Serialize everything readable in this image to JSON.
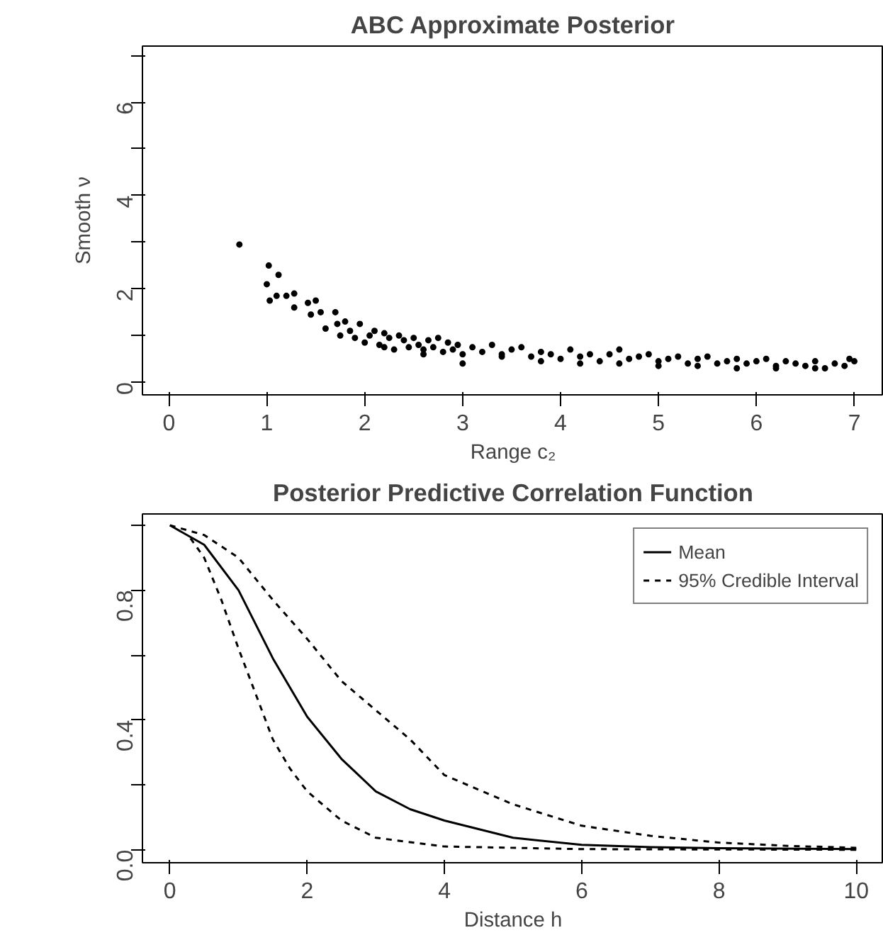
{
  "chart_data": [
    {
      "type": "scatter",
      "title": "ABC Approximate Posterior",
      "xlabel": "Range c₂",
      "ylabel": "Smooth ν",
      "xlim": [
        -0.27,
        7.3
      ],
      "ylim": [
        -0.27,
        7.2
      ],
      "xticks": [
        0,
        1,
        2,
        3,
        4,
        5,
        6,
        7
      ],
      "yticks": [
        0,
        {
          "value": 1,
          "label": null
        },
        2,
        {
          "value": 3,
          "label": null
        },
        4,
        {
          "value": 5,
          "label": null
        },
        6,
        {
          "value": 7,
          "label": null
        }
      ],
      "grid": false,
      "legend": false,
      "marker": "circle",
      "series": [
        {
          "color": "#000000",
          "x": [
            0.72,
            1.0,
            1.02,
            1.03,
            1.1,
            1.12,
            1.2,
            1.28,
            1.28,
            1.42,
            1.45,
            1.5,
            1.55,
            1.6,
            1.7,
            1.72,
            1.75,
            1.8,
            1.85,
            1.9,
            1.95,
            2.0,
            2.05,
            2.1,
            2.15,
            2.2,
            2.25,
            2.3,
            2.35,
            2.4,
            2.45,
            2.5,
            2.55,
            2.6,
            2.65,
            2.7,
            2.75,
            2.8,
            2.85,
            2.9,
            2.95,
            3.0,
            3.1,
            3.2,
            3.3,
            3.4,
            3.5,
            3.6,
            3.7,
            3.8,
            3.9,
            4.0,
            4.1,
            4.2,
            4.3,
            4.4,
            4.5,
            4.6,
            4.7,
            4.8,
            4.9,
            5.0,
            5.1,
            5.2,
            5.3,
            5.4,
            5.5,
            5.6,
            5.7,
            5.8,
            5.9,
            6.0,
            6.1,
            6.2,
            6.3,
            6.4,
            6.5,
            6.6,
            6.7,
            6.8,
            6.9,
            6.95,
            7.0,
            2.2,
            2.6,
            3.0,
            3.4,
            3.8,
            4.2,
            4.6,
            5.0,
            5.4,
            5.8,
            6.2,
            6.6
          ],
          "values": [
            2.95,
            2.1,
            2.5,
            1.75,
            1.85,
            2.3,
            1.85,
            1.9,
            1.6,
            1.7,
            1.45,
            1.75,
            1.5,
            1.15,
            1.5,
            1.25,
            1.0,
            1.3,
            1.1,
            0.95,
            1.25,
            0.85,
            1.0,
            1.1,
            0.8,
            1.05,
            0.95,
            0.7,
            1.0,
            0.9,
            0.75,
            0.95,
            0.8,
            0.7,
            0.9,
            0.75,
            0.95,
            0.65,
            0.85,
            0.7,
            0.8,
            0.6,
            0.75,
            0.65,
            0.8,
            0.6,
            0.7,
            0.75,
            0.55,
            0.65,
            0.6,
            0.5,
            0.7,
            0.55,
            0.6,
            0.45,
            0.6,
            0.7,
            0.5,
            0.55,
            0.6,
            0.45,
            0.5,
            0.55,
            0.4,
            0.5,
            0.55,
            0.4,
            0.45,
            0.5,
            0.4,
            0.45,
            0.5,
            0.35,
            0.45,
            0.4,
            0.35,
            0.45,
            0.3,
            0.4,
            0.35,
            0.5,
            0.45,
            0.75,
            0.6,
            0.4,
            0.55,
            0.45,
            0.4,
            0.4,
            0.35,
            0.35,
            0.3,
            0.3,
            0.3
          ]
        }
      ]
    },
    {
      "type": "line",
      "title": "Posterior Predictive Correlation Function",
      "xlabel": "Distance h",
      "xlim": [
        -0.4,
        10.4
      ],
      "ylim": [
        -0.04,
        1.035
      ],
      "xticks": [
        0,
        2,
        4,
        6,
        8,
        10
      ],
      "yticks": [
        {
          "value": 0,
          "label": "0.0"
        },
        {
          "value": 0.2,
          "label": null
        },
        0.4,
        {
          "value": 0.6,
          "label": null
        },
        0.8,
        {
          "value": 1,
          "label": null
        }
      ],
      "grid": false,
      "legend": "top right",
      "series": [
        {
          "name": "Mean",
          "color": "#000000",
          "line_style": "solid",
          "x": [
            0,
            0.5,
            1,
            1.5,
            2,
            2.5,
            3,
            3.5,
            4,
            5,
            6,
            7,
            8,
            10
          ],
          "values": [
            1.0,
            0.94,
            0.8,
            0.59,
            0.41,
            0.28,
            0.18,
            0.125,
            0.09,
            0.037,
            0.015,
            0.008,
            0.005,
            0.002
          ]
        },
        {
          "name": "95% Credible Interval",
          "color": "#000000",
          "line_style": "dashed",
          "x": [
            0,
            0.5,
            1,
            1.5,
            2,
            2.5,
            3,
            3.5,
            4,
            5,
            6,
            7,
            8,
            9,
            10
          ],
          "values": [
            1.0,
            0.97,
            0.9,
            0.77,
            0.65,
            0.52,
            0.43,
            0.34,
            0.23,
            0.14,
            0.074,
            0.043,
            0.022,
            0.012,
            0.006
          ]
        },
        {
          "color": "#000000",
          "line_style": "dashed",
          "x": [
            0.3,
            0.5,
            0.75,
            1,
            1.25,
            1.5,
            1.75,
            2,
            2.5,
            3,
            4,
            6,
            10
          ],
          "values": [
            0.96,
            0.9,
            0.77,
            0.62,
            0.48,
            0.34,
            0.25,
            0.18,
            0.09,
            0.037,
            0.01,
            0.002,
            0.0
          ]
        }
      ]
    }
  ]
}
